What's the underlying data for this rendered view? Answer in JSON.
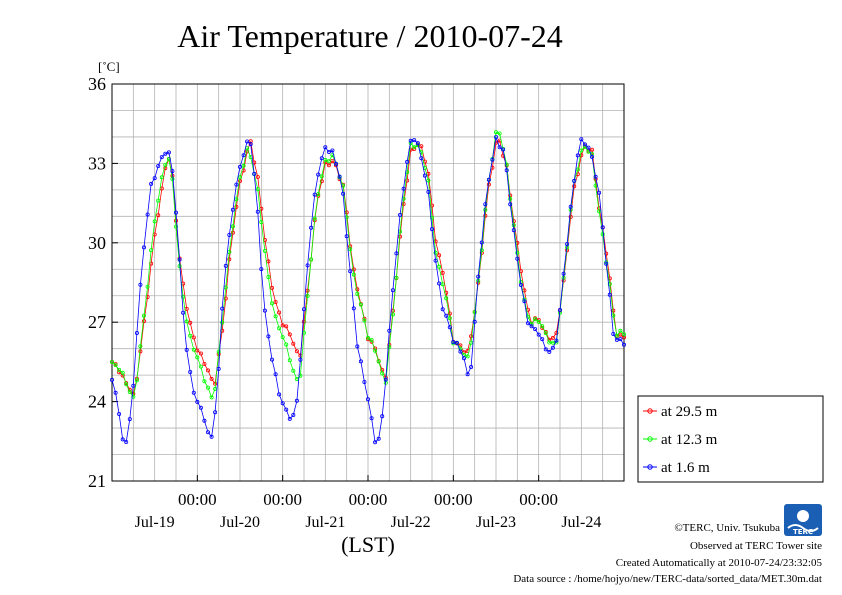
{
  "chart_data": {
    "type": "line",
    "title": "Air Temperature / 2010-07-24",
    "unit_label": "[˚C]",
    "xlabel": "(LST)",
    "ylabel": "",
    "ylim": [
      21,
      36
    ],
    "y_ticks": [
      "21",
      "24",
      "27",
      "30",
      "33",
      "36"
    ],
    "x_tick_time_labels": [
      "00:00",
      "00:00",
      "00:00",
      "00:00",
      "00:00"
    ],
    "x_date_labels": [
      "Jul-19",
      "Jul-20",
      "Jul-21",
      "Jul-22",
      "Jul-23",
      "Jul-24"
    ],
    "x_range_days": [
      0,
      6
    ],
    "grid": true,
    "legend_position": "bottom-right",
    "series": [
      {
        "name": "at 29.5 m",
        "color": "#ff0000",
        "keypoints": [
          [
            0.0,
            25.5
          ],
          [
            0.08,
            25.3
          ],
          [
            0.16,
            24.8
          ],
          [
            0.22,
            24.5
          ],
          [
            0.25,
            24.2
          ],
          [
            0.3,
            25.0
          ],
          [
            0.4,
            27.5
          ],
          [
            0.5,
            30.3
          ],
          [
            0.6,
            32.4
          ],
          [
            0.65,
            33.5
          ],
          [
            0.7,
            32.8
          ],
          [
            0.8,
            29.0
          ],
          [
            0.9,
            27.0
          ],
          [
            1.0,
            26.0
          ],
          [
            1.1,
            25.5
          ],
          [
            1.15,
            25.0
          ],
          [
            1.2,
            24.6
          ],
          [
            1.3,
            26.8
          ],
          [
            1.4,
            30.0
          ],
          [
            1.5,
            32.3
          ],
          [
            1.62,
            34.0
          ],
          [
            1.72,
            32.2
          ],
          [
            1.8,
            29.8
          ],
          [
            1.9,
            27.8
          ],
          [
            2.0,
            27.0
          ],
          [
            2.1,
            26.6
          ],
          [
            2.15,
            26.0
          ],
          [
            2.2,
            25.6
          ],
          [
            2.3,
            28.3
          ],
          [
            2.4,
            31.5
          ],
          [
            2.5,
            33.0
          ],
          [
            2.6,
            33.2
          ],
          [
            2.72,
            32.0
          ],
          [
            2.82,
            29.0
          ],
          [
            3.0,
            26.5
          ],
          [
            3.1,
            26.0
          ],
          [
            3.2,
            24.7
          ],
          [
            3.3,
            27.5
          ],
          [
            3.4,
            31.0
          ],
          [
            3.5,
            33.5
          ],
          [
            3.6,
            33.9
          ],
          [
            3.7,
            32.8
          ],
          [
            3.8,
            29.8
          ],
          [
            3.9,
            28.5
          ],
          [
            4.0,
            26.4
          ],
          [
            4.1,
            26.1
          ],
          [
            4.18,
            25.8
          ],
          [
            4.3,
            28.5
          ],
          [
            4.4,
            31.8
          ],
          [
            4.52,
            34.2
          ],
          [
            4.62,
            33.0
          ],
          [
            4.72,
            30.5
          ],
          [
            4.82,
            28.3
          ],
          [
            4.9,
            27.0
          ],
          [
            5.0,
            27.2
          ],
          [
            5.1,
            26.5
          ],
          [
            5.2,
            26.3
          ],
          [
            5.3,
            28.6
          ],
          [
            5.4,
            31.8
          ],
          [
            5.52,
            33.7
          ],
          [
            5.62,
            33.6
          ],
          [
            5.72,
            31.0
          ],
          [
            5.82,
            29.0
          ],
          [
            5.9,
            26.6
          ],
          [
            6.0,
            26.5
          ]
        ]
      },
      {
        "name": "at 12.3 m",
        "color": "#00ff00",
        "keypoints": [
          [
            0.0,
            25.4
          ],
          [
            0.08,
            25.2
          ],
          [
            0.16,
            24.7
          ],
          [
            0.22,
            24.3
          ],
          [
            0.26,
            24.1
          ],
          [
            0.3,
            25.2
          ],
          [
            0.4,
            28.0
          ],
          [
            0.5,
            30.8
          ],
          [
            0.6,
            32.6
          ],
          [
            0.65,
            33.3
          ],
          [
            0.7,
            32.7
          ],
          [
            0.8,
            28.8
          ],
          [
            0.9,
            26.6
          ],
          [
            1.0,
            25.6
          ],
          [
            1.1,
            24.6
          ],
          [
            1.16,
            24.1
          ],
          [
            1.2,
            24.3
          ],
          [
            1.3,
            27.4
          ],
          [
            1.4,
            30.4
          ],
          [
            1.5,
            32.4
          ],
          [
            1.6,
            33.6
          ],
          [
            1.72,
            31.8
          ],
          [
            1.8,
            29.5
          ],
          [
            1.9,
            27.3
          ],
          [
            2.0,
            26.4
          ],
          [
            2.08,
            25.6
          ],
          [
            2.15,
            24.8
          ],
          [
            2.2,
            24.8
          ],
          [
            2.3,
            28.4
          ],
          [
            2.4,
            31.7
          ],
          [
            2.5,
            33.0
          ],
          [
            2.6,
            33.2
          ],
          [
            2.72,
            32.0
          ],
          [
            2.82,
            29.0
          ],
          [
            3.0,
            26.4
          ],
          [
            3.1,
            25.8
          ],
          [
            3.2,
            24.6
          ],
          [
            3.3,
            27.6
          ],
          [
            3.4,
            31.3
          ],
          [
            3.5,
            33.6
          ],
          [
            3.6,
            33.6
          ],
          [
            3.7,
            32.6
          ],
          [
            3.8,
            29.5
          ],
          [
            3.9,
            28.2
          ],
          [
            4.0,
            26.2
          ],
          [
            4.1,
            25.9
          ],
          [
            4.18,
            25.6
          ],
          [
            4.3,
            28.8
          ],
          [
            4.4,
            32.0
          ],
          [
            4.52,
            34.4
          ],
          [
            4.62,
            33.0
          ],
          [
            4.72,
            30.4
          ],
          [
            4.82,
            28.0
          ],
          [
            4.9,
            26.9
          ],
          [
            5.0,
            27.0
          ],
          [
            5.1,
            26.4
          ],
          [
            5.2,
            26.1
          ],
          [
            5.3,
            28.9
          ],
          [
            5.4,
            32.0
          ],
          [
            5.52,
            33.6
          ],
          [
            5.62,
            33.4
          ],
          [
            5.72,
            31.0
          ],
          [
            5.82,
            28.8
          ],
          [
            5.9,
            26.5
          ],
          [
            6.0,
            26.5
          ]
        ]
      },
      {
        "name": "at 1.6 m",
        "color": "#0000ff",
        "keypoints": [
          [
            0.0,
            24.8
          ],
          [
            0.04,
            24.5
          ],
          [
            0.08,
            23.8
          ],
          [
            0.1,
            22.8
          ],
          [
            0.13,
            22.5
          ],
          [
            0.18,
            22.6
          ],
          [
            0.24,
            24.0
          ],
          [
            0.3,
            27.0
          ],
          [
            0.38,
            30.0
          ],
          [
            0.45,
            32.1
          ],
          [
            0.52,
            32.8
          ],
          [
            0.6,
            33.4
          ],
          [
            0.65,
            33.6
          ],
          [
            0.72,
            32.5
          ],
          [
            0.8,
            28.8
          ],
          [
            0.86,
            26.2
          ],
          [
            0.93,
            24.8
          ],
          [
            1.0,
            24.0
          ],
          [
            1.06,
            23.8
          ],
          [
            1.12,
            22.8
          ],
          [
            1.18,
            22.7
          ],
          [
            1.24,
            24.5
          ],
          [
            1.3,
            28.0
          ],
          [
            1.4,
            31.0
          ],
          [
            1.5,
            33.0
          ],
          [
            1.58,
            33.8
          ],
          [
            1.62,
            34.0
          ],
          [
            1.7,
            31.5
          ],
          [
            1.78,
            27.5
          ],
          [
            1.88,
            25.5
          ],
          [
            1.95,
            24.5
          ],
          [
            2.0,
            24.0
          ],
          [
            2.08,
            23.5
          ],
          [
            2.15,
            23.4
          ],
          [
            2.22,
            26.0
          ],
          [
            2.3,
            29.5
          ],
          [
            2.4,
            32.5
          ],
          [
            2.5,
            33.7
          ],
          [
            2.6,
            33.4
          ],
          [
            2.7,
            32.0
          ],
          [
            2.8,
            28.5
          ],
          [
            2.88,
            26.0
          ],
          [
            2.95,
            25.0
          ],
          [
            3.0,
            24.2
          ],
          [
            3.06,
            23.0
          ],
          [
            3.1,
            22.3
          ],
          [
            3.15,
            22.8
          ],
          [
            3.2,
            24.5
          ],
          [
            3.3,
            28.5
          ],
          [
            3.4,
            31.8
          ],
          [
            3.48,
            33.6
          ],
          [
            3.52,
            34.2
          ],
          [
            3.6,
            33.6
          ],
          [
            3.7,
            32.0
          ],
          [
            3.8,
            29.0
          ],
          [
            3.88,
            27.5
          ],
          [
            3.95,
            27.0
          ],
          [
            4.0,
            26.4
          ],
          [
            4.08,
            26.0
          ],
          [
            4.14,
            25.5
          ],
          [
            4.18,
            24.6
          ],
          [
            4.22,
            25.6
          ],
          [
            4.3,
            29.0
          ],
          [
            4.4,
            32.2
          ],
          [
            4.5,
            34.0
          ],
          [
            4.6,
            33.4
          ],
          [
            4.7,
            30.5
          ],
          [
            4.8,
            28.2
          ],
          [
            4.88,
            27.0
          ],
          [
            4.95,
            26.8
          ],
          [
            5.0,
            26.7
          ],
          [
            5.08,
            26.0
          ],
          [
            5.16,
            25.8
          ],
          [
            5.22,
            26.4
          ],
          [
            5.3,
            29.0
          ],
          [
            5.38,
            31.5
          ],
          [
            5.46,
            33.5
          ],
          [
            5.5,
            33.9
          ],
          [
            5.55,
            33.8
          ],
          [
            5.6,
            33.5
          ],
          [
            5.7,
            32.0
          ],
          [
            5.8,
            29.0
          ],
          [
            5.88,
            26.5
          ],
          [
            5.94,
            26.4
          ],
          [
            6.0,
            26.3
          ]
        ]
      }
    ]
  },
  "credits": {
    "copyright": "©TERC, Univ. Tsukuba",
    "site": "Observed at TERC Tower site",
    "created": "Created Automatically at 2010-07-24/23:32:05",
    "source": "Data source : /home/hojyo/new/TERC-data/sorted_data/MET.30m.dat"
  },
  "logo": {
    "text": "TERC",
    "color": "#1a5fb4"
  }
}
